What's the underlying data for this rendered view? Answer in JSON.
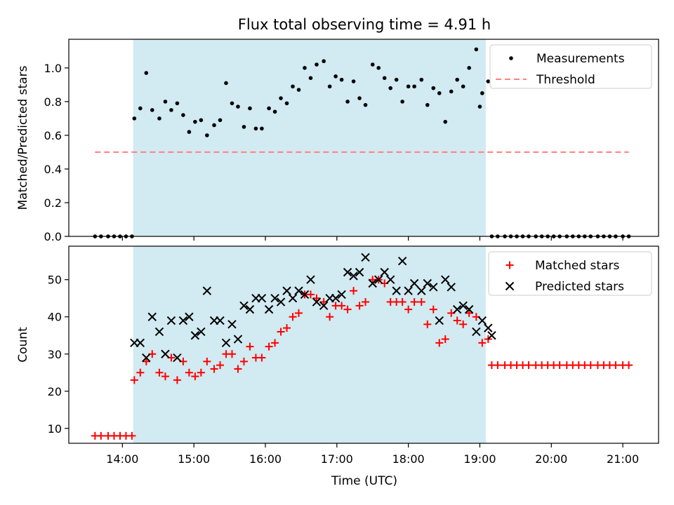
{
  "figure": {
    "title": "Flux total observing time = 4.91 h",
    "xlabel": "Time (UTC)"
  },
  "colors": {
    "shade": "#add8e6",
    "measurement": "#000000",
    "threshold": "#ff7f7f",
    "matched": "#ff0000",
    "predicted": "#000000"
  },
  "chart_data": [
    {
      "type": "scatter",
      "ylabel": "Matched/Predicted stars",
      "xlim": [
        "13:15",
        "21:30"
      ],
      "ylim": [
        0,
        1.17
      ],
      "yticks": [
        0.0,
        0.2,
        0.4,
        0.6,
        0.8,
        1.0
      ],
      "shaded_interval": [
        "14:09",
        "19:05"
      ],
      "legend": {
        "placement": "top-right",
        "entries": [
          "Measurements",
          "Threshold"
        ]
      },
      "series": [
        {
          "name": "Measurements",
          "marker": "dot",
          "points": [
            [
              "13:37",
              0
            ],
            [
              "13:42",
              0
            ],
            [
              "13:48",
              0
            ],
            [
              "13:53",
              0
            ],
            [
              "13:58",
              0
            ],
            [
              "14:03",
              0
            ],
            [
              "14:08",
              0
            ],
            [
              "14:10",
              0.7
            ],
            [
              "14:15",
              0.76
            ],
            [
              "14:20",
              0.97
            ],
            [
              "14:25",
              0.75
            ],
            [
              "14:31",
              0.7
            ],
            [
              "14:36",
              0.8
            ],
            [
              "14:41",
              0.75
            ],
            [
              "14:46",
              0.79
            ],
            [
              "14:51",
              0.72
            ],
            [
              "14:56",
              0.62
            ],
            [
              "15:01",
              0.68
            ],
            [
              "15:06",
              0.69
            ],
            [
              "15:11",
              0.6
            ],
            [
              "15:17",
              0.66
            ],
            [
              "15:22",
              0.69
            ],
            [
              "15:27",
              0.91
            ],
            [
              "15:32",
              0.79
            ],
            [
              "15:37",
              0.77
            ],
            [
              "15:42",
              0.65
            ],
            [
              "15:47",
              0.76
            ],
            [
              "15:52",
              0.64
            ],
            [
              "15:57",
              0.64
            ],
            [
              "16:03",
              0.76
            ],
            [
              "16:08",
              0.74
            ],
            [
              "16:13",
              0.82
            ],
            [
              "16:18",
              0.79
            ],
            [
              "16:23",
              0.89
            ],
            [
              "16:28",
              0.87
            ],
            [
              "16:33",
              1.0
            ],
            [
              "16:38",
              0.94
            ],
            [
              "16:43",
              1.02
            ],
            [
              "16:49",
              1.04
            ],
            [
              "16:54",
              0.89
            ],
            [
              "16:59",
              0.95
            ],
            [
              "17:04",
              0.93
            ],
            [
              "17:09",
              0.8
            ],
            [
              "17:14",
              0.92
            ],
            [
              "17:19",
              0.82
            ],
            [
              "17:24",
              0.78
            ],
            [
              "17:30",
              1.02
            ],
            [
              "17:35",
              1.0
            ],
            [
              "17:40",
              0.94
            ],
            [
              "17:45",
              0.88
            ],
            [
              "17:50",
              0.93
            ],
            [
              "17:55",
              0.8
            ],
            [
              "18:00",
              0.89
            ],
            [
              "18:05",
              0.89
            ],
            [
              "18:11",
              0.93
            ],
            [
              "18:16",
              0.78
            ],
            [
              "18:21",
              0.88
            ],
            [
              "18:26",
              0.85
            ],
            [
              "18:31",
              0.68
            ],
            [
              "18:36",
              0.86
            ],
            [
              "18:41",
              0.93
            ],
            [
              "18:46",
              0.89
            ],
            [
              "18:51",
              1.0
            ],
            [
              "18:57",
              1.11
            ],
            [
              "19:02",
              0.85
            ],
            [
              "19:07",
              0.92
            ],
            [
              "19:00",
              0.77
            ],
            [
              "19:10",
              0
            ],
            [
              "19:15",
              0
            ],
            [
              "19:21",
              0
            ],
            [
              "19:26",
              0
            ],
            [
              "19:31",
              0
            ],
            [
              "19:36",
              0
            ],
            [
              "19:41",
              0
            ],
            [
              "19:47",
              0
            ],
            [
              "19:52",
              0
            ],
            [
              "19:57",
              0
            ],
            [
              "20:02",
              0
            ],
            [
              "20:07",
              0
            ],
            [
              "20:13",
              0
            ],
            [
              "20:18",
              0
            ],
            [
              "20:23",
              0
            ],
            [
              "20:28",
              0
            ],
            [
              "20:33",
              0
            ],
            [
              "20:39",
              0
            ],
            [
              "20:44",
              0
            ],
            [
              "20:49",
              0
            ],
            [
              "20:54",
              0
            ],
            [
              "21:00",
              0
            ],
            [
              "21:05",
              0
            ]
          ]
        },
        {
          "name": "Threshold",
          "style": "dashed",
          "points": [
            [
              "13:37",
              0.5
            ],
            [
              "21:05",
              0.5
            ]
          ]
        }
      ]
    },
    {
      "type": "scatter",
      "ylabel": "Count",
      "xlim": [
        "13:15",
        "21:30"
      ],
      "ylim": [
        6,
        59
      ],
      "yticks": [
        10,
        20,
        30,
        40,
        50
      ],
      "xticks": [
        "14:00",
        "15:00",
        "16:00",
        "17:00",
        "18:00",
        "19:00",
        "20:00",
        "21:00"
      ],
      "shaded_interval": [
        "14:09",
        "19:05"
      ],
      "legend": {
        "placement": "top-right",
        "entries": [
          "Matched stars",
          "Predicted stars"
        ]
      },
      "series": [
        {
          "name": "Matched stars",
          "marker": "plus",
          "points": [
            [
              "13:37",
              8
            ],
            [
              "13:42",
              8
            ],
            [
              "13:48",
              8
            ],
            [
              "13:53",
              8
            ],
            [
              "13:58",
              8
            ],
            [
              "14:03",
              8
            ],
            [
              "14:08",
              8
            ],
            [
              "14:10",
              23
            ],
            [
              "14:15",
              25
            ],
            [
              "14:20",
              28
            ],
            [
              "14:25",
              30
            ],
            [
              "14:31",
              25
            ],
            [
              "14:36",
              24
            ],
            [
              "14:41",
              29
            ],
            [
              "14:46",
              23
            ],
            [
              "14:51",
              28
            ],
            [
              "14:56",
              25
            ],
            [
              "15:01",
              24
            ],
            [
              "15:06",
              25
            ],
            [
              "15:11",
              28
            ],
            [
              "15:17",
              26
            ],
            [
              "15:22",
              27
            ],
            [
              "15:27",
              30
            ],
            [
              "15:32",
              30
            ],
            [
              "15:37",
              26
            ],
            [
              "15:42",
              28
            ],
            [
              "15:47",
              32
            ],
            [
              "15:52",
              29
            ],
            [
              "15:57",
              29
            ],
            [
              "16:03",
              32
            ],
            [
              "16:08",
              33
            ],
            [
              "16:13",
              36
            ],
            [
              "16:18",
              37
            ],
            [
              "16:23",
              40
            ],
            [
              "16:28",
              41
            ],
            [
              "16:33",
              46
            ],
            [
              "16:38",
              46
            ],
            [
              "16:43",
              45
            ],
            [
              "16:49",
              44
            ],
            [
              "16:54",
              40
            ],
            [
              "16:59",
              43
            ],
            [
              "17:04",
              43
            ],
            [
              "17:09",
              42
            ],
            [
              "17:14",
              47
            ],
            [
              "17:19",
              43
            ],
            [
              "17:24",
              44
            ],
            [
              "17:30",
              50
            ],
            [
              "17:35",
              50
            ],
            [
              "17:40",
              49
            ],
            [
              "17:45",
              44
            ],
            [
              "17:50",
              44
            ],
            [
              "17:55",
              44
            ],
            [
              "18:00",
              42
            ],
            [
              "18:05",
              44
            ],
            [
              "18:11",
              44
            ],
            [
              "18:16",
              38
            ],
            [
              "18:21",
              42
            ],
            [
              "18:26",
              33
            ],
            [
              "18:31",
              34
            ],
            [
              "18:36",
              41
            ],
            [
              "18:41",
              39
            ],
            [
              "18:46",
              38
            ],
            [
              "18:51",
              41
            ],
            [
              "18:57",
              40
            ],
            [
              "19:02",
              33
            ],
            [
              "19:07",
              34
            ],
            [
              "19:10",
              27
            ],
            [
              "19:15",
              27
            ],
            [
              "19:21",
              27
            ],
            [
              "19:26",
              27
            ],
            [
              "19:31",
              27
            ],
            [
              "19:36",
              27
            ],
            [
              "19:41",
              27
            ],
            [
              "19:47",
              27
            ],
            [
              "19:52",
              27
            ],
            [
              "19:57",
              27
            ],
            [
              "20:02",
              27
            ],
            [
              "20:07",
              27
            ],
            [
              "20:13",
              27
            ],
            [
              "20:18",
              27
            ],
            [
              "20:23",
              27
            ],
            [
              "20:28",
              27
            ],
            [
              "20:33",
              27
            ],
            [
              "20:39",
              27
            ],
            [
              "20:44",
              27
            ],
            [
              "20:49",
              27
            ],
            [
              "20:54",
              27
            ],
            [
              "21:00",
              27
            ],
            [
              "21:05",
              27
            ]
          ]
        },
        {
          "name": "Predicted stars",
          "marker": "x",
          "points": [
            [
              "14:10",
              33
            ],
            [
              "14:15",
              33
            ],
            [
              "14:20",
              29
            ],
            [
              "14:25",
              40
            ],
            [
              "14:31",
              36
            ],
            [
              "14:36",
              30
            ],
            [
              "14:41",
              39
            ],
            [
              "14:46",
              29
            ],
            [
              "14:51",
              39
            ],
            [
              "14:56",
              40
            ],
            [
              "15:01",
              35
            ],
            [
              "15:06",
              36
            ],
            [
              "15:11",
              47
            ],
            [
              "15:17",
              39
            ],
            [
              "15:22",
              39
            ],
            [
              "15:27",
              33
            ],
            [
              "15:32",
              38
            ],
            [
              "15:37",
              34
            ],
            [
              "15:42",
              43
            ],
            [
              "15:47",
              42
            ],
            [
              "15:52",
              45
            ],
            [
              "15:57",
              45
            ],
            [
              "16:03",
              42
            ],
            [
              "16:08",
              45
            ],
            [
              "16:13",
              44
            ],
            [
              "16:18",
              47
            ],
            [
              "16:23",
              45
            ],
            [
              "16:28",
              47
            ],
            [
              "16:33",
              46
            ],
            [
              "16:38",
              50
            ],
            [
              "16:43",
              44
            ],
            [
              "16:49",
              43
            ],
            [
              "16:54",
              45
            ],
            [
              "16:59",
              45
            ],
            [
              "17:04",
              46
            ],
            [
              "17:09",
              52
            ],
            [
              "17:14",
              51
            ],
            [
              "17:19",
              52
            ],
            [
              "17:24",
              56
            ],
            [
              "17:30",
              49
            ],
            [
              "17:35",
              50
            ],
            [
              "17:40",
              52
            ],
            [
              "17:45",
              50
            ],
            [
              "17:50",
              47
            ],
            [
              "17:55",
              55
            ],
            [
              "18:00",
              47
            ],
            [
              "18:05",
              49
            ],
            [
              "18:11",
              47
            ],
            [
              "18:16",
              49
            ],
            [
              "18:21",
              48
            ],
            [
              "18:26",
              39
            ],
            [
              "18:31",
              50
            ],
            [
              "18:36",
              48
            ],
            [
              "18:41",
              42
            ],
            [
              "18:46",
              43
            ],
            [
              "18:51",
              42
            ],
            [
              "18:57",
              36
            ],
            [
              "19:02",
              39
            ],
            [
              "19:07",
              37
            ],
            [
              "19:10",
              35
            ]
          ]
        }
      ]
    }
  ]
}
